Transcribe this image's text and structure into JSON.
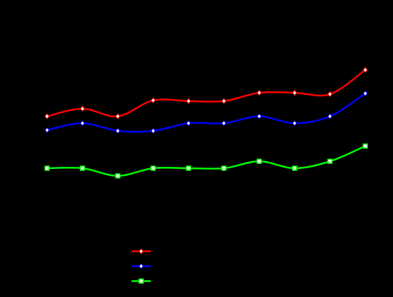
{
  "chart_data": {
    "type": "line",
    "categories": [
      null,
      null,
      null,
      null,
      null,
      null,
      null,
      null,
      null,
      null
    ],
    "ylim": [
      0,
      100
    ],
    "smooth": true,
    "legend": "bottom",
    "series": [
      {
        "color": "#ff0000",
        "marker": "diamond",
        "values": [
          52.8,
          57.2,
          52.8,
          62,
          61.6,
          61.6,
          66.4,
          66.4,
          65.6,
          79.6
        ]
      },
      {
        "color": "#0000ff",
        "marker": "diamond",
        "values": [
          44.8,
          48.8,
          44.4,
          44.4,
          48.8,
          48.8,
          52.8,
          48.8,
          52.8,
          66
        ]
      },
      {
        "color": "#00ff00",
        "marker": "square",
        "values": [
          22.8,
          22.8,
          18.4,
          22.8,
          22.8,
          22.8,
          26.8,
          22.8,
          26.8,
          35.6
        ]
      }
    ]
  }
}
